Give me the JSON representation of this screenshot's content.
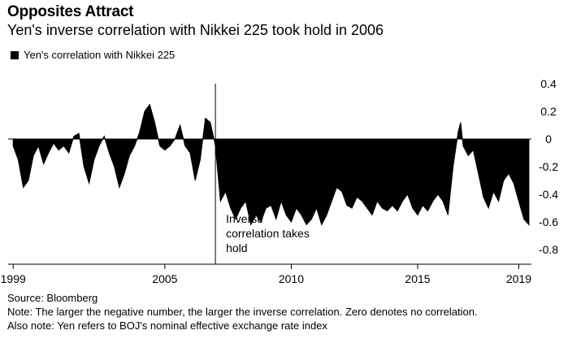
{
  "title": "Opposites Attract",
  "subtitle": "Yen's inverse correlation with Nikkei 225 took hold in 2006",
  "legend": {
    "label": "Yen's correlation with Nikkei 225",
    "color": "#000000"
  },
  "annotation": {
    "lines": [
      "Inverse",
      "correlation takes",
      "hold"
    ],
    "x": 2007.0
  },
  "footer": {
    "source": "Source: Bloomberg",
    "note": "Note: The larger the negative number, the larger the inverse correlation. Zero denotes no correlation.",
    "also_note": "Also note: Yen refers to BOJ's nominal effective exchange rate index"
  },
  "chart_data": {
    "type": "area",
    "x_ticks": [
      1999,
      2005,
      2010,
      2015,
      2019
    ],
    "y_ticks": [
      0.4,
      0.2,
      0,
      -0.2,
      -0.4,
      -0.6,
      -0.8
    ],
    "y_tick_labels": [
      "0.4",
      "0.2",
      "0",
      "-0.2",
      "-0.4",
      "-0.6",
      "-0.8"
    ],
    "xlim": [
      1998.8,
      2019.5
    ],
    "ylim": [
      -0.9,
      0.45
    ],
    "series": [
      {
        "name": "Yen's correlation with Nikkei 225",
        "points": [
          [
            1999.0,
            -0.05
          ],
          [
            1999.2,
            -0.15
          ],
          [
            1999.4,
            -0.35
          ],
          [
            1999.6,
            -0.3
          ],
          [
            1999.8,
            -0.12
          ],
          [
            2000.0,
            -0.05
          ],
          [
            2000.2,
            -0.18
          ],
          [
            2000.4,
            -0.1
          ],
          [
            2000.6,
            -0.03
          ],
          [
            2000.8,
            -0.08
          ],
          [
            2001.0,
            -0.05
          ],
          [
            2001.2,
            -0.1
          ],
          [
            2001.4,
            0.02
          ],
          [
            2001.6,
            0.04
          ],
          [
            2001.8,
            -0.2
          ],
          [
            2002.0,
            -0.32
          ],
          [
            2002.2,
            -0.15
          ],
          [
            2002.4,
            -0.05
          ],
          [
            2002.6,
            0.02
          ],
          [
            2002.8,
            -0.1
          ],
          [
            2003.0,
            -0.2
          ],
          [
            2003.2,
            -0.35
          ],
          [
            2003.4,
            -0.25
          ],
          [
            2003.6,
            -0.12
          ],
          [
            2003.8,
            -0.05
          ],
          [
            2004.0,
            0.05
          ],
          [
            2004.2,
            0.2
          ],
          [
            2004.4,
            0.25
          ],
          [
            2004.6,
            0.12
          ],
          [
            2004.8,
            -0.05
          ],
          [
            2005.0,
            -0.08
          ],
          [
            2005.2,
            -0.05
          ],
          [
            2005.4,
            0.0
          ],
          [
            2005.6,
            0.1
          ],
          [
            2005.8,
            -0.05
          ],
          [
            2006.0,
            -0.1
          ],
          [
            2006.2,
            -0.3
          ],
          [
            2006.4,
            -0.15
          ],
          [
            2006.6,
            0.15
          ],
          [
            2006.8,
            0.12
          ],
          [
            2007.0,
            -0.05
          ],
          [
            2007.2,
            -0.45
          ],
          [
            2007.4,
            -0.38
          ],
          [
            2007.6,
            -0.5
          ],
          [
            2007.8,
            -0.58
          ],
          [
            2008.0,
            -0.5
          ],
          [
            2008.2,
            -0.45
          ],
          [
            2008.4,
            -0.62
          ],
          [
            2008.6,
            -0.55
          ],
          [
            2008.8,
            -0.6
          ],
          [
            2009.0,
            -0.5
          ],
          [
            2009.2,
            -0.48
          ],
          [
            2009.4,
            -0.58
          ],
          [
            2009.6,
            -0.45
          ],
          [
            2009.8,
            -0.55
          ],
          [
            2010.0,
            -0.6
          ],
          [
            2010.2,
            -0.5
          ],
          [
            2010.4,
            -0.55
          ],
          [
            2010.6,
            -0.62
          ],
          [
            2010.8,
            -0.58
          ],
          [
            2011.0,
            -0.5
          ],
          [
            2011.2,
            -0.62
          ],
          [
            2011.4,
            -0.55
          ],
          [
            2011.6,
            -0.45
          ],
          [
            2011.8,
            -0.35
          ],
          [
            2012.0,
            -0.38
          ],
          [
            2012.2,
            -0.48
          ],
          [
            2012.4,
            -0.5
          ],
          [
            2012.6,
            -0.42
          ],
          [
            2012.8,
            -0.45
          ],
          [
            2013.0,
            -0.5
          ],
          [
            2013.2,
            -0.55
          ],
          [
            2013.4,
            -0.45
          ],
          [
            2013.6,
            -0.5
          ],
          [
            2013.8,
            -0.52
          ],
          [
            2014.0,
            -0.48
          ],
          [
            2014.2,
            -0.52
          ],
          [
            2014.4,
            -0.45
          ],
          [
            2014.6,
            -0.4
          ],
          [
            2014.8,
            -0.5
          ],
          [
            2015.0,
            -0.55
          ],
          [
            2015.2,
            -0.48
          ],
          [
            2015.4,
            -0.52
          ],
          [
            2015.6,
            -0.45
          ],
          [
            2015.8,
            -0.4
          ],
          [
            2016.0,
            -0.45
          ],
          [
            2016.2,
            -0.55
          ],
          [
            2016.4,
            -0.2
          ],
          [
            2016.6,
            0.05
          ],
          [
            2016.7,
            0.12
          ],
          [
            2016.8,
            -0.05
          ],
          [
            2017.0,
            -0.12
          ],
          [
            2017.2,
            -0.08
          ],
          [
            2017.4,
            -0.25
          ],
          [
            2017.6,
            -0.42
          ],
          [
            2017.8,
            -0.5
          ],
          [
            2018.0,
            -0.38
          ],
          [
            2018.2,
            -0.45
          ],
          [
            2018.4,
            -0.3
          ],
          [
            2018.6,
            -0.25
          ],
          [
            2018.8,
            -0.32
          ],
          [
            2019.0,
            -0.45
          ],
          [
            2019.2,
            -0.58
          ],
          [
            2019.4,
            -0.62
          ]
        ]
      }
    ]
  }
}
